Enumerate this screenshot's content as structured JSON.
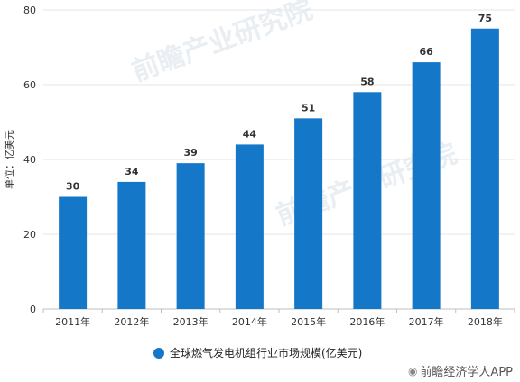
{
  "chart_data": {
    "type": "bar",
    "categories": [
      "2011年",
      "2012年",
      "2013年",
      "2014年",
      "2015年",
      "2016年",
      "2017年",
      "2018年"
    ],
    "series": [
      {
        "name": "全球燃气发电机组行业市场规模(亿美元)",
        "values": [
          30,
          34,
          39,
          44,
          51,
          58,
          66,
          75
        ]
      }
    ],
    "ylabel": "单位：亿美元",
    "ylim": [
      0,
      80
    ],
    "yticks": [
      0,
      20,
      40,
      60,
      80
    ],
    "grid": true,
    "legend_position": "bottom-center",
    "colors": {
      "bar": "#1477c8",
      "grid": "#e6e6e6",
      "axis": "#bfbfbf"
    }
  },
  "watermarks": {
    "brand": "前瞻产业研究院",
    "app": "前瞻经济学人APP"
  }
}
